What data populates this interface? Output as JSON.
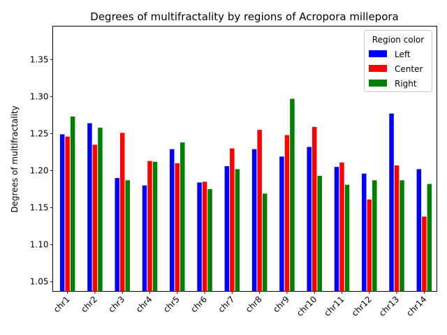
{
  "chart_data": {
    "type": "bar",
    "title": "Degrees of multifractality by regions of Acropora millepora",
    "xlabel": "",
    "ylabel": "Degrees of multifractality",
    "ylim": [
      1.037,
      1.395
    ],
    "yticks": [
      "1.05",
      "1.10",
      "1.15",
      "1.20",
      "1.25",
      "1.30",
      "1.35"
    ],
    "categories": [
      "chr1",
      "chr2",
      "chr3",
      "chr4",
      "chr5",
      "chr6",
      "chr7",
      "chr8",
      "chr9",
      "chr10",
      "chr11",
      "chr12",
      "chr13",
      "chr14"
    ],
    "series": [
      {
        "name": "Left",
        "color": "#0000ff",
        "values": [
          1.249,
          1.264,
          1.19,
          1.18,
          1.229,
          1.184,
          1.206,
          1.229,
          1.219,
          1.232,
          1.205,
          1.196,
          1.277,
          1.202
        ]
      },
      {
        "name": "Center",
        "color": "#ff0000",
        "values": [
          1.246,
          1.235,
          1.251,
          1.213,
          1.21,
          1.185,
          1.23,
          1.255,
          1.248,
          1.259,
          1.211,
          1.161,
          1.207,
          1.138
        ]
      },
      {
        "name": "Right",
        "color": "#008000",
        "values": [
          1.273,
          1.258,
          1.187,
          1.212,
          1.238,
          1.175,
          1.202,
          1.169,
          1.297,
          1.193,
          1.181,
          1.187,
          1.187,
          1.182
        ]
      }
    ],
    "legend": {
      "title": "Region color",
      "position": "top-right"
    },
    "grid": false
  }
}
